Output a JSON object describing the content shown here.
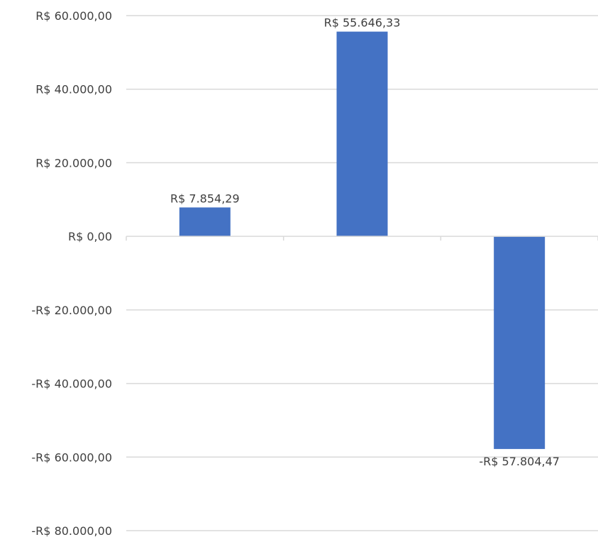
{
  "chart_data": {
    "type": "bar",
    "categories": [
      "",
      "",
      ""
    ],
    "values": [
      7854.29,
      55646.33,
      -57804.47
    ],
    "value_labels": [
      "R$ 7.854,29",
      "R$ 55.646,33",
      "-R$ 57.804,47"
    ],
    "ylim": [
      -80000,
      60000
    ],
    "yticks": [
      60000,
      40000,
      20000,
      0,
      -20000,
      -40000,
      -60000,
      -80000
    ],
    "ytick_labels": [
      "R$ 60.000,00",
      "R$ 40.000,00",
      "R$ 20.000,00",
      "R$ 0,00",
      "-R$ 20.000,00",
      "-R$ 40.000,00",
      "-R$ 60.000,00",
      "-R$ 80.000,00"
    ],
    "grid": true,
    "legend": "none",
    "bar_color": "#4472c4",
    "title": "",
    "xlabel": "",
    "ylabel": ""
  }
}
